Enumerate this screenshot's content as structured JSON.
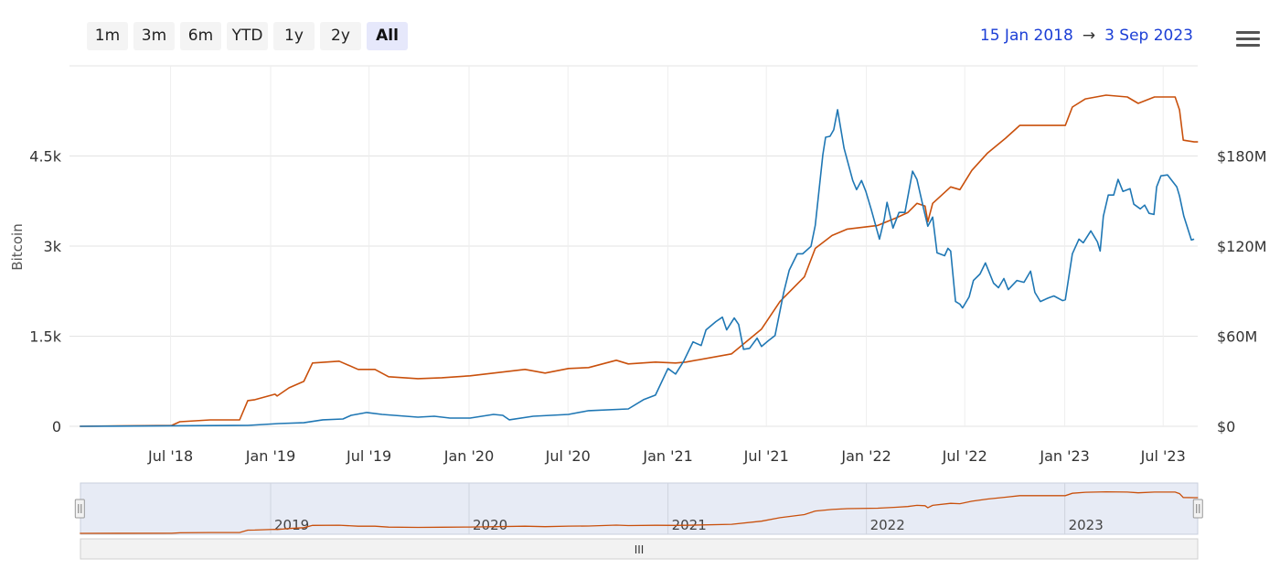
{
  "range_selector": {
    "buttons": [
      "1m",
      "3m",
      "6m",
      "YTD",
      "1y",
      "2y",
      "All"
    ],
    "selected": "All"
  },
  "date_range": {
    "from": "15 Jan 2018",
    "arrow": "→",
    "to": "3 Sep 2023"
  },
  "menu_icon": "hamburger-icon",
  "navigator": {
    "labels": [
      "2019",
      "2020",
      "2021",
      "2022",
      "2023"
    ],
    "scrollbar_grip": "III"
  },
  "chart_data": {
    "type": "line",
    "title": "",
    "x_axis": {
      "type": "datetime",
      "range": [
        "2018-01-15",
        "2023-09-03"
      ],
      "tick_labels": [
        "Jul '18",
        "Jan '19",
        "Jul '19",
        "Jan '20",
        "Jul '20",
        "Jan '21",
        "Jul '21",
        "Jan '22",
        "Jul '22",
        "Jan '23",
        "Jul '23"
      ],
      "tick_dates": [
        "2018-07-01",
        "2019-01-01",
        "2019-07-01",
        "2020-01-01",
        "2020-07-01",
        "2021-01-01",
        "2021-07-01",
        "2022-01-01",
        "2022-07-01",
        "2023-01-01",
        "2023-07-01"
      ]
    },
    "y_axis_left": {
      "label": "Bitcoin",
      "range": [
        0,
        6000
      ],
      "ticks": [
        0,
        1500,
        3000,
        4500
      ],
      "tick_labels": [
        "0",
        "1.5k",
        "3k",
        "4.5k"
      ]
    },
    "y_axis_right": {
      "label": "",
      "unit": "USD millions",
      "range": [
        0,
        240
      ],
      "ticks": [
        0,
        60,
        120,
        180
      ],
      "tick_labels": [
        "$0",
        "$60M",
        "$120M",
        "$180M"
      ]
    },
    "grid": true,
    "legend": "none",
    "series": [
      {
        "axis": "left",
        "color": "#c9500c",
        "points": [
          [
            "2018-01-15",
            0
          ],
          [
            "2018-07-03",
            15
          ],
          [
            "2018-07-18",
            76
          ],
          [
            "2018-09-12",
            107
          ],
          [
            "2018-11-05",
            107
          ],
          [
            "2018-11-20",
            428
          ],
          [
            "2018-12-03",
            443
          ],
          [
            "2019-01-09",
            534
          ],
          [
            "2019-01-13",
            504
          ],
          [
            "2019-02-04",
            641
          ],
          [
            "2019-03-03",
            748
          ],
          [
            "2019-03-19",
            1054
          ],
          [
            "2019-05-07",
            1084
          ],
          [
            "2019-06-11",
            947
          ],
          [
            "2019-07-12",
            947
          ],
          [
            "2019-08-06",
            825
          ],
          [
            "2019-09-29",
            794
          ],
          [
            "2019-11-12",
            809
          ],
          [
            "2020-01-03",
            840
          ],
          [
            "2020-04-13",
            947
          ],
          [
            "2020-05-20",
            886
          ],
          [
            "2020-07-02",
            962
          ],
          [
            "2020-08-08",
            977
          ],
          [
            "2020-09-28",
            1099
          ],
          [
            "2020-10-20",
            1038
          ],
          [
            "2020-12-09",
            1069
          ],
          [
            "2021-01-15",
            1054
          ],
          [
            "2021-02-03",
            1069
          ],
          [
            "2021-04-28",
            1206
          ],
          [
            "2021-06-22",
            1619
          ],
          [
            "2021-07-26",
            2077
          ],
          [
            "2021-09-09",
            2489
          ],
          [
            "2021-09-29",
            2962
          ],
          [
            "2021-10-30",
            3176
          ],
          [
            "2021-11-27",
            3283
          ],
          [
            "2022-01-22",
            3344
          ],
          [
            "2022-02-24",
            3466
          ],
          [
            "2022-03-18",
            3558
          ],
          [
            "2022-04-04",
            3711
          ],
          [
            "2022-04-19",
            3665
          ],
          [
            "2022-04-24",
            3405
          ],
          [
            "2022-05-03",
            3711
          ],
          [
            "2022-06-05",
            3985
          ],
          [
            "2022-06-22",
            3940
          ],
          [
            "2022-07-14",
            4260
          ],
          [
            "2022-08-12",
            4550
          ],
          [
            "2022-09-14",
            4795
          ],
          [
            "2022-10-10",
            5009
          ],
          [
            "2023-01-02",
            5009
          ],
          [
            "2023-01-15",
            5314
          ],
          [
            "2023-02-08",
            5451
          ],
          [
            "2023-03-18",
            5512
          ],
          [
            "2023-04-26",
            5482
          ],
          [
            "2023-05-16",
            5375
          ],
          [
            "2023-06-15",
            5482
          ],
          [
            "2023-07-23",
            5482
          ],
          [
            "2023-07-31",
            5268
          ],
          [
            "2023-08-07",
            4764
          ],
          [
            "2023-08-27",
            4734
          ],
          [
            "2023-09-03",
            4734
          ]
        ]
      },
      {
        "axis": "right",
        "color": "#1f77b4",
        "points": [
          [
            "2018-01-15",
            0
          ],
          [
            "2018-11-20",
            0.6
          ],
          [
            "2019-01-16",
            1.8
          ],
          [
            "2019-03-03",
            2.4
          ],
          [
            "2019-04-07",
            4.3
          ],
          [
            "2019-05-14",
            4.9
          ],
          [
            "2019-05-29",
            7.3
          ],
          [
            "2019-06-27",
            9.2
          ],
          [
            "2019-07-25",
            7.9
          ],
          [
            "2019-09-29",
            6.1
          ],
          [
            "2019-10-29",
            6.7
          ],
          [
            "2019-11-27",
            5.5
          ],
          [
            "2020-01-03",
            5.5
          ],
          [
            "2020-02-15",
            7.9
          ],
          [
            "2020-03-03",
            7.3
          ],
          [
            "2020-03-15",
            4.3
          ],
          [
            "2020-04-28",
            6.7
          ],
          [
            "2020-07-02",
            7.9
          ],
          [
            "2020-08-08",
            10.4
          ],
          [
            "2020-10-20",
            11.6
          ],
          [
            "2020-11-17",
            17.7
          ],
          [
            "2020-12-09",
            20.8
          ],
          [
            "2021-01-01",
            38.5
          ],
          [
            "2021-01-15",
            34.8
          ],
          [
            "2021-01-30",
            43.4
          ],
          [
            "2021-02-16",
            56.2
          ],
          [
            "2021-03-03",
            53.8
          ],
          [
            "2021-03-12",
            64.2
          ],
          [
            "2021-03-30",
            69.7
          ],
          [
            "2021-04-11",
            72.7
          ],
          [
            "2021-04-19",
            64.2
          ],
          [
            "2021-05-03",
            72.1
          ],
          [
            "2021-05-11",
            67.8
          ],
          [
            "2021-05-20",
            51.3
          ],
          [
            "2021-05-31",
            51.9
          ],
          [
            "2021-06-14",
            58.7
          ],
          [
            "2021-06-22",
            53.2
          ],
          [
            "2021-07-04",
            56.8
          ],
          [
            "2021-07-17",
            60.5
          ],
          [
            "2021-08-02",
            89.2
          ],
          [
            "2021-08-12",
            103.9
          ],
          [
            "2021-08-27",
            114.9
          ],
          [
            "2021-09-06",
            114.9
          ],
          [
            "2021-09-21",
            119.8
          ],
          [
            "2021-09-29",
            133.8
          ],
          [
            "2021-10-13",
            180.9
          ],
          [
            "2021-10-18",
            192.5
          ],
          [
            "2021-10-26",
            193.1
          ],
          [
            "2021-11-02",
            197.4
          ],
          [
            "2021-11-09",
            210.8
          ],
          [
            "2021-11-21",
            185.1
          ],
          [
            "2021-12-07",
            163.7
          ],
          [
            "2021-12-14",
            157.6
          ],
          [
            "2021-12-23",
            163.7
          ],
          [
            "2021-12-31",
            156.4
          ],
          [
            "2022-01-10",
            144.2
          ],
          [
            "2022-01-25",
            124.6
          ],
          [
            "2022-02-03",
            138.1
          ],
          [
            "2022-02-08",
            149.1
          ],
          [
            "2022-02-19",
            132.0
          ],
          [
            "2022-03-02",
            142.4
          ],
          [
            "2022-03-13",
            142.4
          ],
          [
            "2022-03-27",
            169.9
          ],
          [
            "2022-04-04",
            164.4
          ],
          [
            "2022-04-16",
            145.4
          ],
          [
            "2022-04-24",
            133.2
          ],
          [
            "2022-05-03",
            139.3
          ],
          [
            "2022-05-11",
            115.5
          ],
          [
            "2022-05-25",
            113.6
          ],
          [
            "2022-05-31",
            118.5
          ],
          [
            "2022-06-05",
            116.7
          ],
          [
            "2022-06-14",
            83.1
          ],
          [
            "2022-06-22",
            81.3
          ],
          [
            "2022-06-27",
            78.8
          ],
          [
            "2022-07-09",
            86.2
          ],
          [
            "2022-07-17",
            97.1
          ],
          [
            "2022-07-29",
            101.4
          ],
          [
            "2022-08-08",
            108.8
          ],
          [
            "2022-08-23",
            95.3
          ],
          [
            "2022-09-01",
            92.3
          ],
          [
            "2022-09-11",
            98.4
          ],
          [
            "2022-09-19",
            91.0
          ],
          [
            "2022-10-05",
            97.1
          ],
          [
            "2022-10-18",
            95.9
          ],
          [
            "2022-10-30",
            103.3
          ],
          [
            "2022-11-07",
            89.2
          ],
          [
            "2022-11-17",
            83.1
          ],
          [
            "2022-12-02",
            85.5
          ],
          [
            "2022-12-12",
            86.8
          ],
          [
            "2022-12-28",
            83.7
          ],
          [
            "2023-01-02",
            84.3
          ],
          [
            "2023-01-15",
            114.9
          ],
          [
            "2023-01-27",
            124.6
          ],
          [
            "2023-02-04",
            122.2
          ],
          [
            "2023-02-18",
            130.1
          ],
          [
            "2023-03-02",
            122.8
          ],
          [
            "2023-03-07",
            116.7
          ],
          [
            "2023-03-13",
            139.9
          ],
          [
            "2023-03-22",
            154.0
          ],
          [
            "2023-04-01",
            154.0
          ],
          [
            "2023-04-09",
            164.4
          ],
          [
            "2023-04-18",
            156.4
          ],
          [
            "2023-05-01",
            158.2
          ],
          [
            "2023-05-08",
            147.9
          ],
          [
            "2023-05-20",
            144.8
          ],
          [
            "2023-05-28",
            147.3
          ],
          [
            "2023-06-05",
            141.8
          ],
          [
            "2023-06-14",
            141.1
          ],
          [
            "2023-06-19",
            159.5
          ],
          [
            "2023-06-27",
            166.8
          ],
          [
            "2023-07-09",
            167.4
          ],
          [
            "2023-07-26",
            159.5
          ],
          [
            "2023-07-31",
            153.4
          ],
          [
            "2023-08-08",
            139.9
          ],
          [
            "2023-08-22",
            124.0
          ],
          [
            "2023-08-27",
            124.6
          ]
        ]
      }
    ]
  }
}
